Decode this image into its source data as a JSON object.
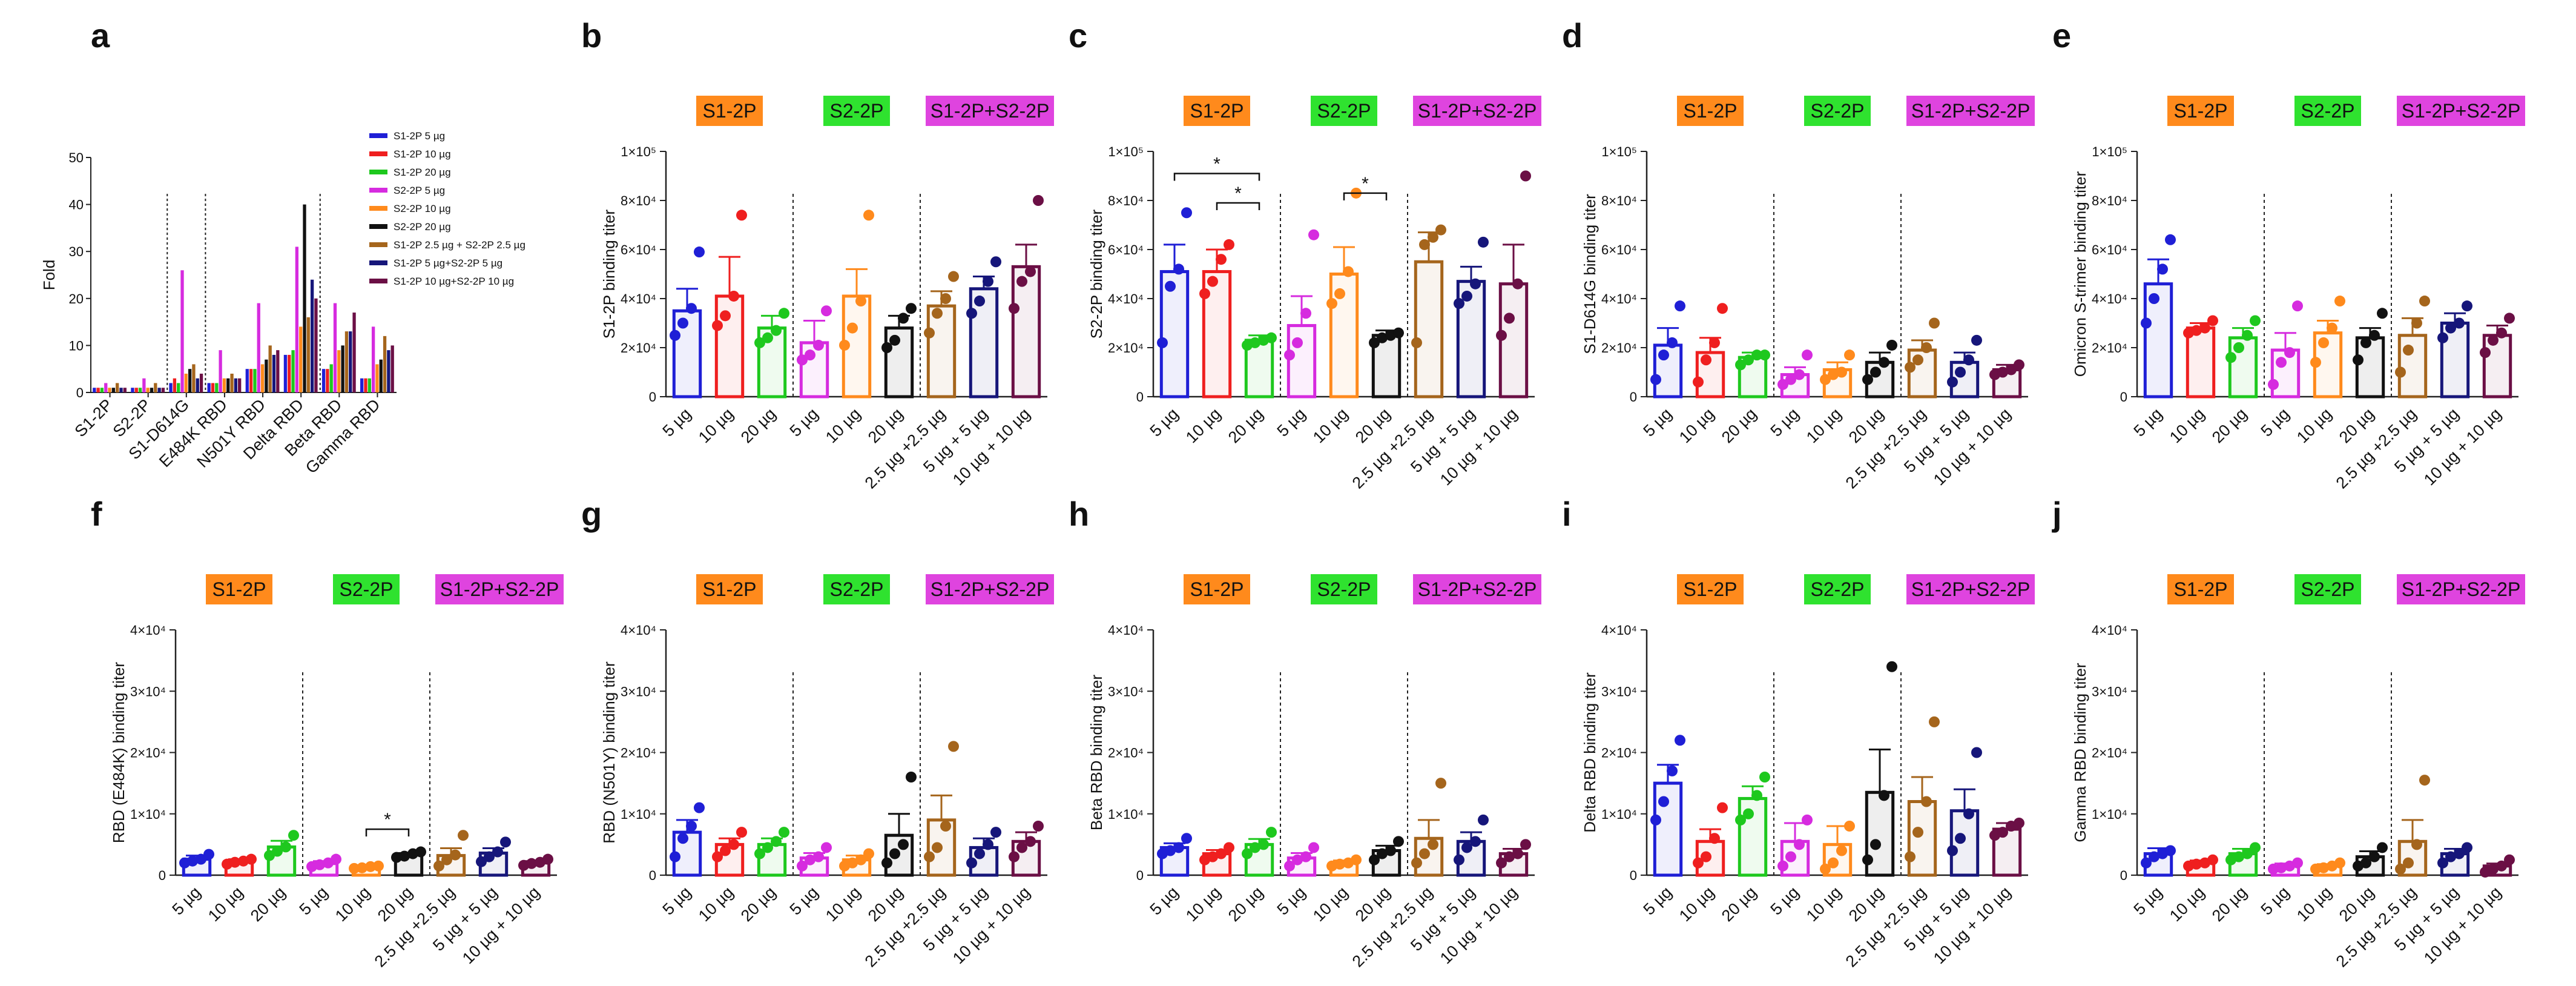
{
  "palette": {
    "c5": "#1f1fd6",
    "c10": "#ef1f1f",
    "c20": "#1ec81e",
    "s5": "#d62bdf",
    "s10": "#ff8a1c",
    "s20": "#111111",
    "m5": "#a5651c",
    "m10": "#16167a",
    "m20": "#6b0f45",
    "boxS1": "#ff8a1c",
    "boxS2": "#2fe22f",
    "boxS12": "#df44df"
  },
  "groups": {
    "s1": "S1-2P",
    "s2": "S2-2P",
    "s12": "S1-2P+S2-2P"
  },
  "x_labels": [
    "5 µg",
    "10 µg",
    "20 µg",
    "5 µg",
    "10 µg",
    "20 µg",
    "2.5 µg +2.5 µg",
    "5 µg + 5 µg",
    "10 µg + 10 µg"
  ],
  "chart_data": [
    {
      "id": "a",
      "type": "bar",
      "letter": "a",
      "ylabel": "Fold",
      "ylim": [
        0,
        50
      ],
      "yticks": [
        "0",
        "10",
        "20",
        "30",
        "40",
        "50"
      ],
      "categories": [
        "S1-2P",
        "S2-2P",
        "S1-D614G",
        "E484K RBD",
        "N501Y RBD",
        "Delta RBD",
        "Beta RBD",
        "Gamma RBD"
      ],
      "series": [
        {
          "name": "S1-2P 5 µg",
          "values": [
            1,
            1,
            2,
            2,
            5,
            8,
            5,
            3
          ]
        },
        {
          "name": "S1-2P 10 µg",
          "values": [
            1,
            1,
            3,
            2,
            5,
            8,
            5,
            3
          ]
        },
        {
          "name": "S1-2P 20 µg",
          "values": [
            1,
            1,
            2,
            2,
            5,
            9,
            6,
            3
          ]
        },
        {
          "name": "S2-2P 5 µg",
          "values": [
            2,
            3,
            26,
            9,
            19,
            31,
            19,
            14
          ]
        },
        {
          "name": "S2-2P 10 µg",
          "values": [
            1,
            1,
            4,
            3,
            6,
            14,
            9,
            6
          ]
        },
        {
          "name": "S2-2P 20 µg",
          "values": [
            1,
            1,
            5,
            3,
            7,
            40,
            10,
            7
          ]
        },
        {
          "name": "S1-2P 2.5 µg + S2-2P 2.5 µg",
          "values": [
            2,
            2,
            6,
            4,
            10,
            16,
            13,
            12
          ]
        },
        {
          "name": "S1-2P 5 µg+S2-2P 5 µg",
          "values": [
            1,
            1,
            3,
            3,
            8,
            24,
            13,
            9
          ]
        },
        {
          "name": "S1-2P 10 µg+S2-2P 10 µg",
          "values": [
            1,
            1,
            4,
            3,
            9,
            20,
            17,
            10
          ]
        }
      ]
    },
    {
      "id": "b",
      "type": "bar",
      "letter": "b",
      "ylabel": "S1-2P binding titer",
      "ylim": [
        0,
        100000
      ],
      "yticks": [
        "0",
        "2×10⁴",
        "4×10⁴",
        "6×10⁴",
        "8×10⁴",
        "1×10⁵"
      ],
      "categories": [
        "5 µg",
        "10 µg",
        "20 µg",
        "5 µg",
        "10 µg",
        "20 µg",
        "2.5 µg +2.5 µg",
        "5 µg + 5 µg",
        "10 µg + 10 µg"
      ],
      "values": [
        35000,
        41000,
        28000,
        22000,
        41000,
        28000,
        37000,
        44000,
        53000
      ],
      "errors": [
        9000,
        16000,
        5000,
        9000,
        11000,
        5000,
        6000,
        5000,
        9000
      ],
      "points": [
        [
          25000,
          30000,
          36000,
          59000
        ],
        [
          29000,
          33000,
          41000,
          74000
        ],
        [
          22000,
          24000,
          27000,
          34000
        ],
        [
          15000,
          17000,
          21000,
          35000
        ],
        [
          21000,
          28000,
          39000,
          74000
        ],
        [
          20000,
          23000,
          32000,
          36000
        ],
        [
          26000,
          34000,
          40000,
          49000
        ],
        [
          34000,
          39000,
          47000,
          55000
        ],
        [
          36000,
          47000,
          51000,
          80000
        ]
      ],
      "sig": []
    },
    {
      "id": "c",
      "type": "bar",
      "letter": "c",
      "ylabel": "S2-2P binding titer",
      "ylim": [
        0,
        100000
      ],
      "yticks": [
        "0",
        "2×10⁴",
        "4×10⁴",
        "6×10⁴",
        "8×10⁴",
        "1×10⁵"
      ],
      "categories": [
        "5 µg",
        "10 µg",
        "20 µg",
        "5 µg",
        "10 µg",
        "20 µg",
        "2.5 µg +2.5 µg",
        "5 µg + 5 µg",
        "10 µg + 10 µg"
      ],
      "values": [
        51000,
        51000,
        23000,
        29000,
        50000,
        25000,
        55000,
        47000,
        46000
      ],
      "errors": [
        11000,
        9000,
        2000,
        12000,
        11000,
        2000,
        12000,
        6000,
        16000
      ],
      "points": [
        [
          22000,
          45000,
          52000,
          75000
        ],
        [
          42000,
          47000,
          56000,
          62000
        ],
        [
          21000,
          22000,
          23000,
          24000
        ],
        [
          17000,
          22000,
          34000,
          66000
        ],
        [
          38000,
          42000,
          51000,
          83000
        ],
        [
          22000,
          24000,
          25000,
          26000
        ],
        [
          22000,
          62000,
          65000,
          68000
        ],
        [
          38000,
          41000,
          46000,
          63000
        ],
        [
          25000,
          32000,
          46000,
          90000
        ]
      ],
      "sig": [
        {
          "from": 0,
          "to": 2,
          "y": 91000,
          "label": "*"
        },
        {
          "from": 1,
          "to": 2,
          "y": 79000,
          "label": "*"
        },
        {
          "from": 4,
          "to": 5,
          "y": 83000,
          "label": "*"
        }
      ]
    },
    {
      "id": "d",
      "type": "bar",
      "letter": "d",
      "ylabel": "S1-D614G binding titer",
      "ylim": [
        0,
        100000
      ],
      "yticks": [
        "0",
        "2×10⁴",
        "4×10⁴",
        "6×10⁴",
        "8×10⁴",
        "1×10⁵"
      ],
      "categories": [
        "5 µg",
        "10 µg",
        "20 µg",
        "5 µg",
        "10 µg",
        "20 µg",
        "2.5 µg +2.5 µg",
        "5 µg + 5 µg",
        "10 µg + 10 µg"
      ],
      "values": [
        21000,
        18000,
        16000,
        9000,
        11000,
        14000,
        19000,
        14000,
        11000
      ],
      "errors": [
        7000,
        6000,
        2000,
        3000,
        3000,
        4000,
        4000,
        4000,
        2000
      ],
      "points": [
        [
          7000,
          17000,
          22000,
          37000
        ],
        [
          6000,
          15000,
          22000,
          36000
        ],
        [
          13000,
          15000,
          17000,
          17000
        ],
        [
          5000,
          7000,
          9000,
          17000
        ],
        [
          7000,
          9000,
          10000,
          17000
        ],
        [
          7000,
          10000,
          14000,
          21000
        ],
        [
          12000,
          15000,
          20000,
          30000
        ],
        [
          6000,
          10000,
          15000,
          23000
        ],
        [
          9000,
          10000,
          11000,
          13000
        ]
      ],
      "sig": []
    },
    {
      "id": "e",
      "type": "bar",
      "letter": "e",
      "ylabel": "Omicron S-trimer binding titer",
      "ylim": [
        0,
        100000
      ],
      "yticks": [
        "0",
        "2×10⁴",
        "4×10⁴",
        "6×10⁴",
        "8×10⁴",
        "1×10⁵"
      ],
      "categories": [
        "5 µg",
        "10 µg",
        "20 µg",
        "5 µg",
        "10 µg",
        "20 µg",
        "2.5 µg +2.5 µg",
        "5 µg + 5 µg",
        "10 µg + 10 µg"
      ],
      "values": [
        46000,
        28000,
        24000,
        19000,
        26000,
        24000,
        25000,
        30000,
        25000
      ],
      "errors": [
        10000,
        2000,
        4000,
        7000,
        5000,
        4000,
        7000,
        4000,
        4000
      ],
      "points": [
        [
          30000,
          40000,
          52000,
          64000
        ],
        [
          26000,
          27000,
          28000,
          31000
        ],
        [
          16000,
          20000,
          25000,
          31000
        ],
        [
          5000,
          14000,
          18000,
          37000
        ],
        [
          14000,
          22000,
          28000,
          39000
        ],
        [
          15000,
          22000,
          25000,
          34000
        ],
        [
          10000,
          19000,
          30000,
          39000
        ],
        [
          24000,
          28000,
          30000,
          37000
        ],
        [
          18000,
          23000,
          26000,
          32000
        ]
      ],
      "sig": []
    },
    {
      "id": "f",
      "type": "bar",
      "letter": "f",
      "ylabel": "RBD (E484K) binding titer",
      "ylim": [
        0,
        40000
      ],
      "yticks": [
        "0",
        "1×10⁴",
        "2×10⁴",
        "3×10⁴",
        "4×10⁴"
      ],
      "categories": [
        "5 µg",
        "10 µg",
        "20 µg",
        "5 µg",
        "10 µg",
        "20 µg",
        "2.5 µg +2.5 µg",
        "5 µg + 5 µg",
        "10 µg + 10 µg"
      ],
      "values": [
        2600,
        2200,
        4600,
        1900,
        1300,
        3300,
        3200,
        3600,
        2000
      ],
      "errors": [
        600,
        400,
        1000,
        400,
        200,
        300,
        1200,
        800,
        300
      ],
      "points": [
        [
          2000,
          2300,
          2600,
          3400
        ],
        [
          1800,
          2100,
          2300,
          2600
        ],
        [
          3200,
          3900,
          4600,
          6500
        ],
        [
          1400,
          1700,
          2000,
          2600
        ],
        [
          1100,
          1200,
          1400,
          1500
        ],
        [
          2900,
          3100,
          3500,
          3800
        ],
        [
          1500,
          2500,
          3300,
          6500
        ],
        [
          2200,
          3000,
          3800,
          5400
        ],
        [
          1600,
          1900,
          2100,
          2600
        ]
      ],
      "sig": [
        {
          "from": 4,
          "to": 5,
          "y": 7500,
          "label": "*"
        }
      ]
    },
    {
      "id": "g",
      "type": "bar",
      "letter": "g",
      "ylabel": "RBD (N501Y) binding titer",
      "ylim": [
        0,
        40000
      ],
      "yticks": [
        "0",
        "1×10⁴",
        "2×10⁴",
        "3×10⁴",
        "4×10⁴"
      ],
      "categories": [
        "5 µg",
        "10 µg",
        "20 µg",
        "5 µg",
        "10 µg",
        "20 µg",
        "2.5 µg +2.5 µg",
        "5 µg + 5 µg",
        "10 µg + 10 µg"
      ],
      "values": [
        7000,
        5000,
        5000,
        2800,
        2500,
        6500,
        9000,
        4500,
        5500
      ],
      "errors": [
        2000,
        1000,
        1000,
        800,
        700,
        3500,
        4000,
        1500,
        1500
      ],
      "points": [
        [
          3000,
          6000,
          8000,
          11000
        ],
        [
          3000,
          4000,
          5000,
          7000
        ],
        [
          3500,
          4500,
          5500,
          7000
        ],
        [
          1500,
          2500,
          3000,
          4500
        ],
        [
          1500,
          2000,
          2500,
          3500
        ],
        [
          2000,
          3500,
          5000,
          16000
        ],
        [
          3000,
          4500,
          8000,
          21000
        ],
        [
          2000,
          3500,
          5000,
          7000
        ],
        [
          3000,
          4500,
          5500,
          8000
        ]
      ],
      "sig": []
    },
    {
      "id": "h",
      "type": "bar",
      "letter": "h",
      "ylabel": "Beta RBD binding titer",
      "ylim": [
        0,
        40000
      ],
      "yticks": [
        "0",
        "1×10⁴",
        "2×10⁴",
        "3×10⁴",
        "4×10⁴"
      ],
      "categories": [
        "5 µg",
        "10 µg",
        "20 µg",
        "5 µg",
        "10 µg",
        "20 µg",
        "2.5 µg +2.5 µg",
        "5 µg + 5 µg",
        "10 µg + 10 µg"
      ],
      "values": [
        4500,
        3500,
        5000,
        2800,
        2000,
        4000,
        6000,
        5500,
        3500
      ],
      "errors": [
        700,
        600,
        900,
        800,
        400,
        800,
        3000,
        1500,
        800
      ],
      "points": [
        [
          3500,
          4000,
          4500,
          6000
        ],
        [
          2500,
          3000,
          3500,
          4500
        ],
        [
          3500,
          4500,
          5000,
          7000
        ],
        [
          1500,
          2500,
          3000,
          4500
        ],
        [
          1500,
          1800,
          2000,
          2500
        ],
        [
          2500,
          3500,
          4000,
          5500
        ],
        [
          2000,
          3500,
          5000,
          15000
        ],
        [
          2500,
          4500,
          5500,
          9000
        ],
        [
          2000,
          3000,
          3500,
          5000
        ]
      ],
      "sig": []
    },
    {
      "id": "i",
      "type": "bar",
      "letter": "i",
      "ylabel": "Delta RBD binding titer",
      "ylim": [
        0,
        40000
      ],
      "yticks": [
        "0",
        "1×10⁴",
        "2×10⁴",
        "3×10⁴",
        "4×10⁴"
      ],
      "categories": [
        "5 µg",
        "10 µg",
        "20 µg",
        "5 µg",
        "10 µg",
        "20 µg",
        "2.5 µg +2.5 µg",
        "5 µg + 5 µg",
        "10 µg + 10 µg"
      ],
      "values": [
        15000,
        5500,
        12500,
        5500,
        5000,
        13500,
        12000,
        10500,
        7500
      ],
      "errors": [
        3000,
        2000,
        2000,
        3000,
        3000,
        7000,
        4000,
        3500,
        1000
      ],
      "points": [
        [
          9000,
          12000,
          17000,
          22000
        ],
        [
          2000,
          3000,
          6000,
          11000
        ],
        [
          9000,
          10000,
          13000,
          16000
        ],
        [
          1500,
          3000,
          5000,
          9000
        ],
        [
          1000,
          2000,
          4000,
          8000
        ],
        [
          2500,
          5000,
          13000,
          34000
        ],
        [
          3000,
          7000,
          12000,
          25000
        ],
        [
          4000,
          6000,
          10000,
          20000
        ],
        [
          6500,
          7000,
          8000,
          8500
        ]
      ],
      "sig": []
    },
    {
      "id": "j",
      "type": "bar",
      "letter": "j",
      "ylabel": "Gamma RBD binding titer",
      "ylim": [
        0,
        40000
      ],
      "yticks": [
        "0",
        "1×10⁴",
        "2×10⁴",
        "3×10⁴",
        "4×10⁴"
      ],
      "categories": [
        "5 µg",
        "10 µg",
        "20 µg",
        "5 µg",
        "10 µg",
        "20 µg",
        "2.5 µg +2.5 µg",
        "5 µg + 5 µg",
        "10 µg + 10 µg"
      ],
      "values": [
        3500,
        2000,
        3500,
        1500,
        1500,
        3000,
        5500,
        3500,
        1500
      ],
      "errors": [
        900,
        400,
        800,
        400,
        300,
        900,
        3500,
        800,
        400
      ],
      "points": [
        [
          2000,
          3000,
          3500,
          4000
        ],
        [
          1500,
          1800,
          2000,
          2500
        ],
        [
          2500,
          3000,
          3500,
          4500
        ],
        [
          1000,
          1200,
          1500,
          2000
        ],
        [
          1000,
          1200,
          1500,
          2000
        ],
        [
          1500,
          2000,
          3000,
          4500
        ],
        [
          1000,
          2000,
          5000,
          15500
        ],
        [
          2000,
          3000,
          3500,
          4500
        ],
        [
          500,
          1000,
          1500,
          2500
        ]
      ],
      "sig": []
    }
  ]
}
